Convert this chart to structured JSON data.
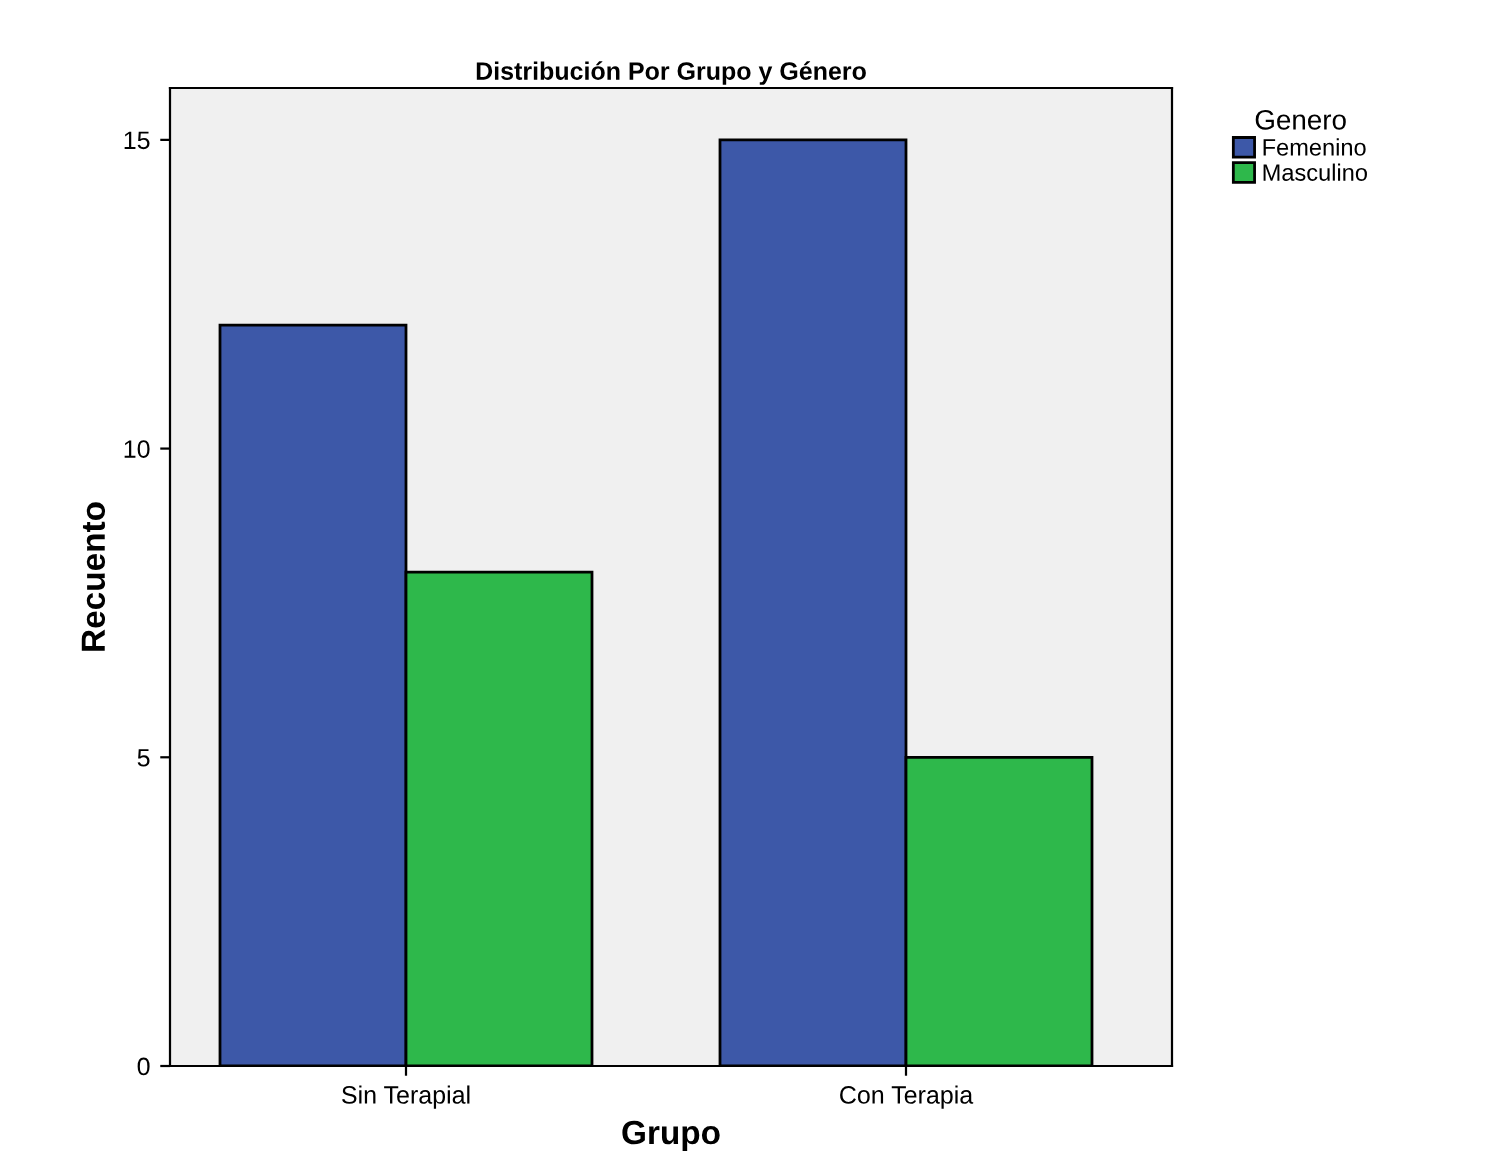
{
  "chart_data": {
    "type": "bar",
    "title": "Distribución Por Grupo y Género",
    "xlabel": "Grupo",
    "ylabel": "Recuento",
    "legend_title": "Genero",
    "categories": [
      "Sin Terapial",
      "Con Terapia"
    ],
    "series": [
      {
        "name": "Femenino",
        "color": "#3d58a8",
        "values": [
          12,
          15
        ]
      },
      {
        "name": "Masculino",
        "color": "#2eb84b",
        "values": [
          8,
          5
        ]
      }
    ],
    "ylim": [
      0,
      15.84
    ],
    "yticks": [
      0,
      5,
      10,
      15
    ],
    "grid": false,
    "legend": "top right"
  }
}
